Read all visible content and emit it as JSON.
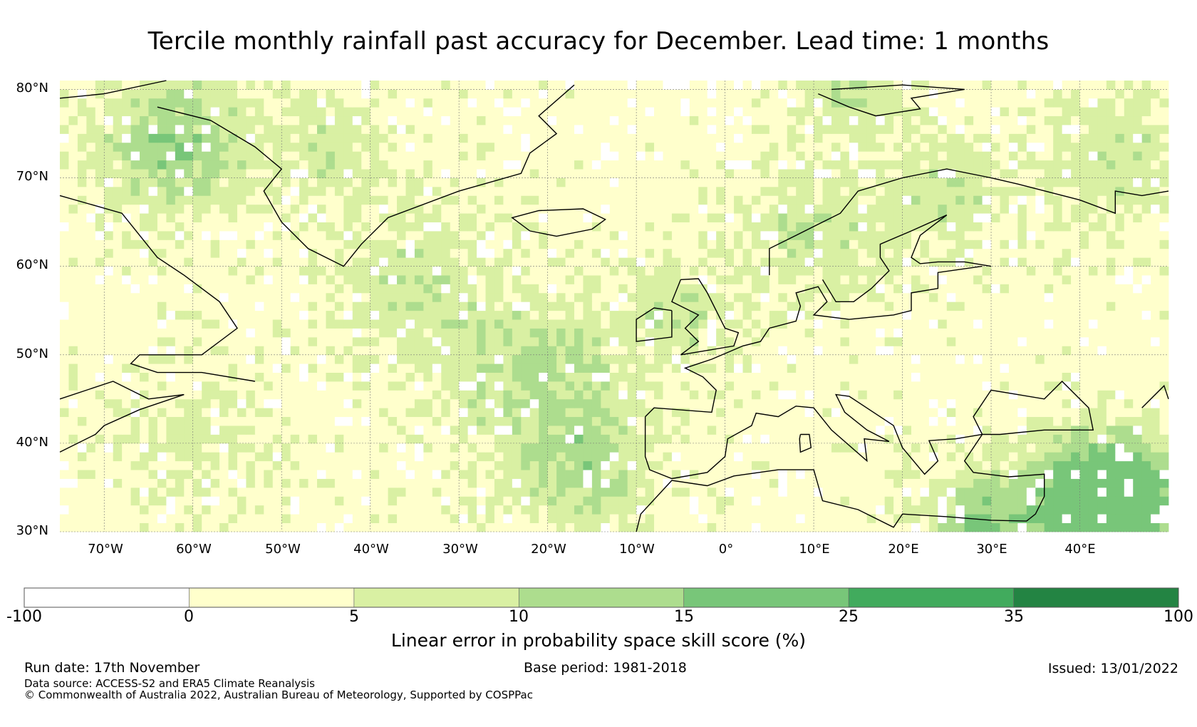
{
  "title": "Tercile monthly rainfall past accuracy for December. Lead time: 1 months",
  "map": {
    "lat_labels": [
      "80°N",
      "70°N",
      "60°N",
      "50°N",
      "40°N",
      "30°N"
    ],
    "lon_labels": [
      "70°W",
      "60°W",
      "50°W",
      "40°W",
      "30°W",
      "20°W",
      "10°W",
      "0°",
      "10°E",
      "20°E",
      "30°E",
      "40°E"
    ],
    "lat_range": [
      30,
      81
    ],
    "lon_range": [
      -75,
      50
    ]
  },
  "colorbar": {
    "ticks": [
      "-100",
      "0",
      "5",
      "10",
      "15",
      "25",
      "35",
      "100"
    ],
    "colors": [
      "#ffffff",
      "#ffffcc",
      "#d9f0a3",
      "#addd8e",
      "#78c679",
      "#41ab5d",
      "#238443"
    ],
    "title": "Linear error in probability space skill score (%)"
  },
  "footer": {
    "run_date": "Run date: 17th November",
    "base_period": "Base period: 1981-2018",
    "issued": "Issued: 13/01/2022",
    "data_source": "Data source: ACCESS-S2 and ERA5 Climate Reanalysis",
    "copyright": "© Commonwealth of Australia 2022, Australian Bureau of Meteorology, Supported by COSPPac"
  }
}
